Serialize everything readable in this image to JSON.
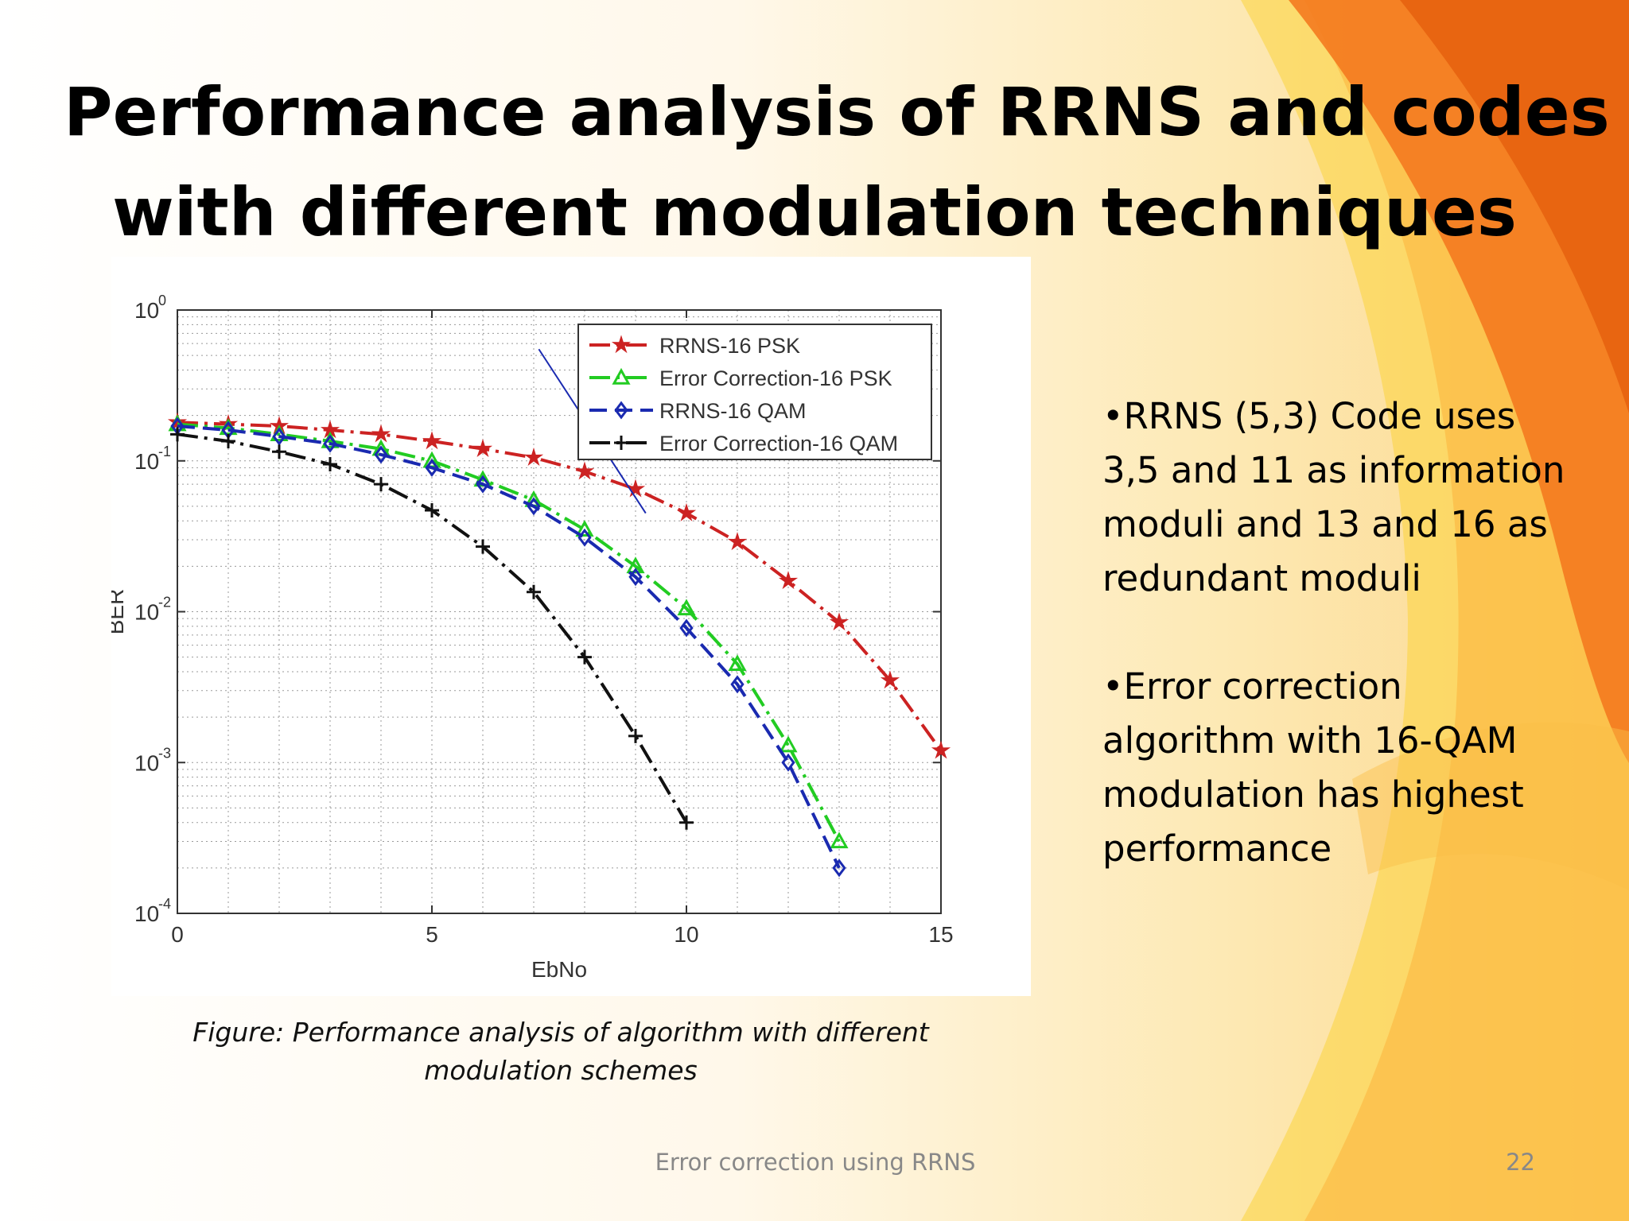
{
  "slide": {
    "title_lines": [
      "Performance analysis of RRNS and codes",
      "with different modulation techniques"
    ],
    "caption": "Figure: Performance analysis of algorithm with different modulation schemes",
    "bullets": [
      "•RRNS (5,3) Code uses 3,5 and 11 as information moduli and 13 and 16 as redundant moduli",
      "•Error correction algorithm with 16-QAM modulation has highest performance"
    ],
    "footer": "Error correction using RRNS",
    "page_number": "22",
    "colors": {
      "accent_orange": "#f47a1f",
      "accent_yellow": "#fcd43c"
    }
  },
  "chart_data": {
    "type": "line",
    "xlabel": "EbNo",
    "ylabel": "BER",
    "xlim": [
      0,
      15
    ],
    "ylim": [
      0.0001,
      1
    ],
    "yscale": "log",
    "x_ticks": [
      0,
      5,
      10,
      15
    ],
    "y_ticks": [
      1,
      0.1,
      0.01,
      0.001,
      0.0001
    ],
    "y_tick_labels": [
      {
        "base": "10",
        "exp": "0"
      },
      {
        "base": "10",
        "exp": "-1"
      },
      {
        "base": "10",
        "exp": "-2"
      },
      {
        "base": "10",
        "exp": "-3"
      },
      {
        "base": "10",
        "exp": "-4"
      }
    ],
    "grid": true,
    "legend_position": "top-right",
    "series": [
      {
        "name": "RRNS-16 PSK",
        "color": "#cc2222",
        "marker": "star",
        "dash": "dashdot",
        "x": [
          0,
          1,
          2,
          3,
          4,
          5,
          6,
          7,
          8,
          9,
          10,
          11,
          12,
          13,
          14,
          15
        ],
        "y": [
          0.18,
          0.175,
          0.17,
          0.16,
          0.15,
          0.135,
          0.12,
          0.105,
          0.085,
          0.065,
          0.045,
          0.029,
          0.016,
          0.0085,
          0.0035,
          0.0012
        ]
      },
      {
        "name": "Error Correction-16 PSK",
        "color": "#22cc22",
        "marker": "triangle",
        "dash": "dashdot",
        "x": [
          0,
          1,
          2,
          3,
          4,
          5,
          6,
          7,
          8,
          9,
          10,
          11,
          12,
          13
        ],
        "y": [
          0.175,
          0.165,
          0.15,
          0.135,
          0.12,
          0.1,
          0.075,
          0.055,
          0.035,
          0.02,
          0.0105,
          0.0045,
          0.0013,
          0.0003
        ]
      },
      {
        "name": "RRNS-16 QAM",
        "color": "#1a2ab0",
        "marker": "diamond",
        "dash": "dash",
        "x": [
          0,
          1,
          2,
          3,
          4,
          5,
          6,
          7,
          8,
          9,
          10,
          11,
          12,
          13
        ],
        "y": [
          0.17,
          0.16,
          0.145,
          0.13,
          0.11,
          0.09,
          0.07,
          0.05,
          0.031,
          0.017,
          0.0078,
          0.0033,
          0.001,
          0.0002
        ]
      },
      {
        "name": "Error Correction-16 QAM",
        "color": "#111111",
        "marker": "plus",
        "dash": "dashdot",
        "x": [
          0,
          1,
          2,
          3,
          4,
          5,
          6,
          7,
          8,
          9,
          10
        ],
        "y": [
          0.15,
          0.135,
          0.115,
          0.095,
          0.07,
          0.047,
          0.027,
          0.0135,
          0.005,
          0.0015,
          0.0004
        ]
      }
    ],
    "annotation_line": {
      "color": "#1a2ab0",
      "x": [
        7.1,
        9.2
      ],
      "y": [
        0.55,
        0.045
      ]
    }
  }
}
